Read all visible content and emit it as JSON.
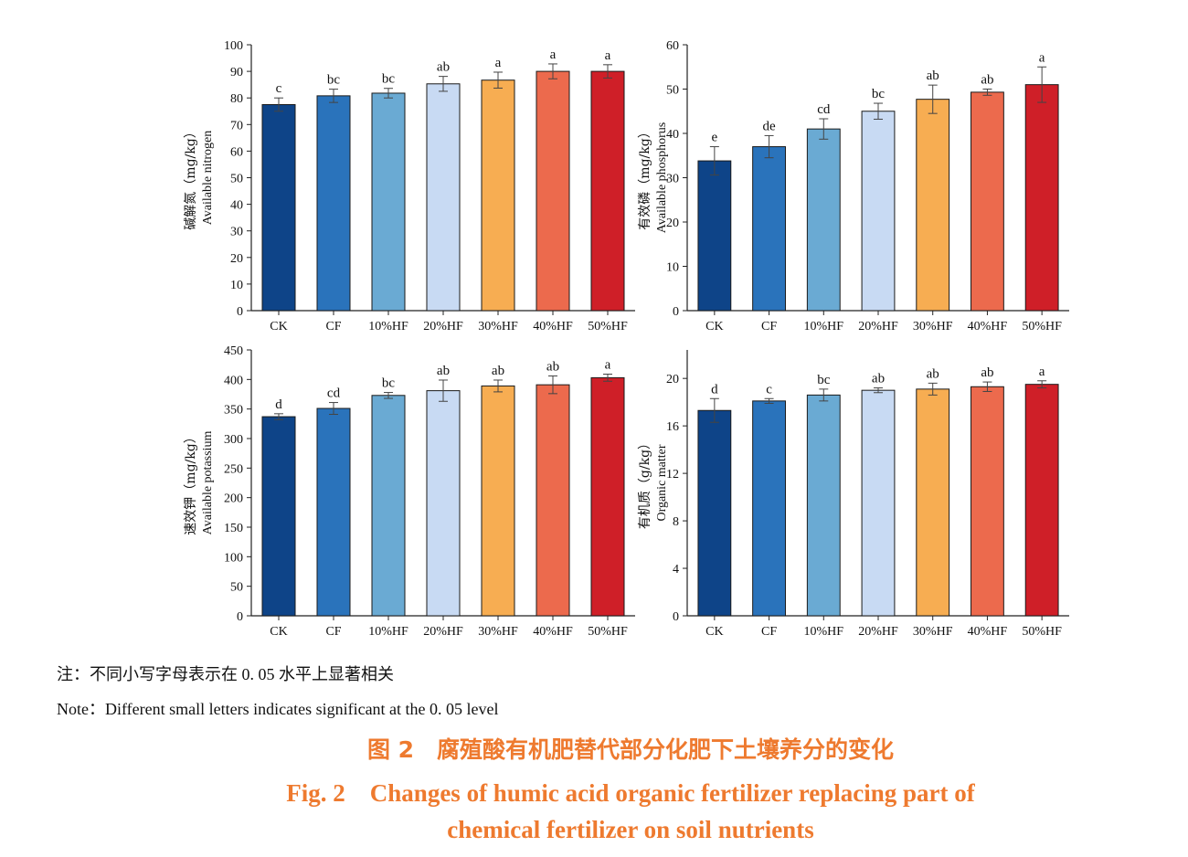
{
  "chart_data": [
    {
      "type": "bar",
      "categories": [
        "CK",
        "CF",
        "10%HF",
        "20%HF",
        "30%HF",
        "40%HF",
        "50%HF"
      ],
      "values": [
        77.5,
        80.8,
        81.8,
        85.3,
        86.7,
        90.0,
        90.0
      ],
      "errors": [
        2.5,
        2.5,
        1.8,
        2.8,
        3.0,
        2.8,
        2.5
      ],
      "letters": [
        "c",
        "bc",
        "bc",
        "ab",
        "a",
        "a",
        "a"
      ],
      "ylabel_cn": "碱解氮（mg/kg）",
      "ylabel_en": "Available nitrogen",
      "ylim": [
        0,
        100
      ],
      "yticks": [
        0,
        10,
        20,
        30,
        40,
        50,
        60,
        70,
        80,
        90,
        100
      ]
    },
    {
      "type": "bar",
      "categories": [
        "CK",
        "CF",
        "10%HF",
        "20%HF",
        "30%HF",
        "40%HF",
        "50%HF"
      ],
      "values": [
        33.8,
        37.0,
        41.0,
        45.0,
        47.7,
        49.3,
        51.0
      ],
      "errors": [
        3.2,
        2.5,
        2.3,
        1.8,
        3.2,
        0.7,
        4.0
      ],
      "letters": [
        "e",
        "de",
        "cd",
        "bc",
        "ab",
        "ab",
        "a"
      ],
      "ylabel_cn": "有效磷（mg/kg）",
      "ylabel_en": "Available phosphorus",
      "ylim": [
        0,
        60
      ],
      "yticks": [
        0,
        10,
        20,
        30,
        40,
        50,
        60
      ]
    },
    {
      "type": "bar",
      "categories": [
        "CK",
        "CF",
        "10%HF",
        "20%HF",
        "30%HF",
        "40%HF",
        "50%HF"
      ],
      "values": [
        337,
        351,
        373,
        381,
        389,
        391,
        403
      ],
      "errors": [
        5,
        10,
        5,
        18,
        10,
        15,
        6
      ],
      "letters": [
        "d",
        "cd",
        "bc",
        "ab",
        "ab",
        "ab",
        "a"
      ],
      "ylabel_cn": "速效钾（mg/kg）",
      "ylabel_en": "Available potassium",
      "ylim": [
        0,
        450
      ],
      "yticks": [
        0,
        50,
        100,
        150,
        200,
        250,
        300,
        350,
        400,
        450
      ]
    },
    {
      "type": "bar",
      "categories": [
        "CK",
        "CF",
        "10%HF",
        "20%HF",
        "30%HF",
        "40%HF",
        "50%HF"
      ],
      "values": [
        17.3,
        18.1,
        18.6,
        19.0,
        19.1,
        19.3,
        19.5
      ],
      "errors": [
        1.0,
        0.2,
        0.5,
        0.2,
        0.5,
        0.4,
        0.3
      ],
      "letters": [
        "d",
        "c",
        "bc",
        "ab",
        "ab",
        "ab",
        "a"
      ],
      "ylabel_cn": "有机质（g/kg）",
      "ylabel_en": "Organic matter",
      "ylim": [
        0,
        22.4
      ],
      "yticks": [
        0,
        4,
        8,
        12,
        16,
        20
      ]
    }
  ],
  "colors": [
    "#0e4488",
    "#2a73bb",
    "#6aaad3",
    "#c8daf3",
    "#f7ad52",
    "#ec6a4d",
    "#cf1f28"
  ],
  "notes": {
    "cn": "注：不同小写字母表示在 0. 05 水平上显著相关",
    "en": "Note：Different small letters indicates significant at the 0. 05 level"
  },
  "caption": {
    "cn": "图 2　腐殖酸有机肥替代部分化肥下土壤养分的变化",
    "en_line1": "Fig. 2　Changes of humic acid organic fertilizer replacing part of",
    "en_line2": "chemical fertilizer on soil nutrients"
  }
}
